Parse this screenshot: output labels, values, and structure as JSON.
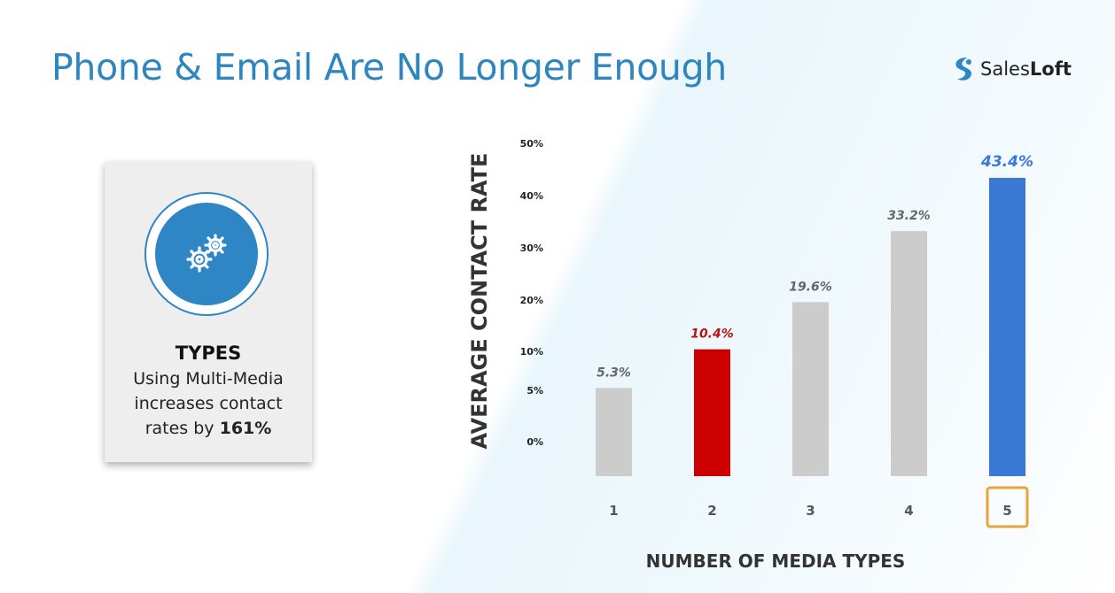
{
  "title": "Phone & Email Are No Longer Enough",
  "logo": {
    "word_regular": "Sales",
    "word_bold": "Loft",
    "icon": "salesloft-s-icon"
  },
  "card": {
    "icon": "gears-icon",
    "heading": "TYPES",
    "text": "Using Multi-Media increases contact rates by",
    "highlight": "161%"
  },
  "chart_data": {
    "type": "bar",
    "categories": [
      "1",
      "2",
      "3",
      "4",
      "5"
    ],
    "values": [
      5.3,
      10.4,
      19.6,
      33.2,
      43.4
    ],
    "data_labels": [
      "5.3%",
      "10.4%",
      "19.6%",
      "33.2%",
      "43.4%"
    ],
    "bar_colors": [
      "#cccccc",
      "#cc0000",
      "#cccccc",
      "#cccccc",
      "#3a78d6"
    ],
    "label_colors": [
      "#666666",
      "#b81414",
      "#666666",
      "#666666",
      "#3a78d6"
    ],
    "highlighted_category": "5",
    "highlight_box_color": "#e8a33a",
    "xlabel": "NUMBER OF MEDIA TYPES",
    "ylabel": "AVERAGE CONTACT RATE",
    "y_ticks": [
      0,
      5,
      10,
      20,
      30,
      40,
      50
    ],
    "y_tick_labels": [
      "0%",
      "5%",
      "10%",
      "20%",
      "30%",
      "40%",
      "50%"
    ],
    "ylim": [
      0,
      50
    ],
    "grid": false,
    "legend": "none"
  }
}
